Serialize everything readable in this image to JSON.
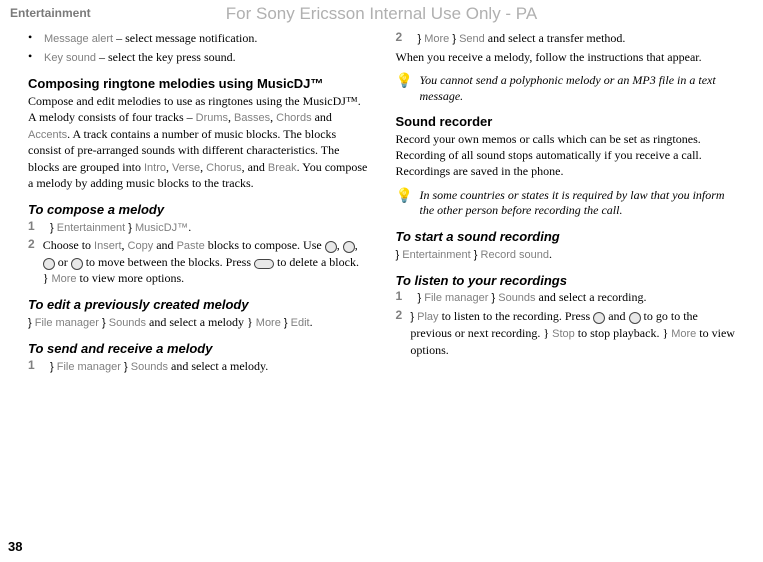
{
  "header": {
    "section": "Entertainment",
    "watermark": "For Sony Ericsson Internal Use Only - PA"
  },
  "page_number": "38",
  "left": {
    "bullets": [
      {
        "label": "Message alert",
        "sep": " – ",
        "rest": "select message notification."
      },
      {
        "label": "Key sound",
        "sep": " – ",
        "rest": "select the key press sound."
      }
    ],
    "h_compose": "Composing ringtone melodies using MusicDJ™",
    "compose_body1": "Compose and edit melodies to use as ringtones using the MusicDJ™. A melody consists of four tracks – ",
    "tracks": [
      "Drums",
      "Basses",
      "Chords",
      "Accents"
    ],
    "and": " and ",
    "comma": ", ",
    "compose_body2": ". A track contains a number of music blocks. The blocks consist of pre-arranged sounds with different characteristics. The blocks are grouped into ",
    "groups": [
      "Intro",
      "Verse",
      "Chorus",
      "Break"
    ],
    "compose_body3": ". You compose a melody by adding music blocks to the tracks.",
    "h_to_compose": "To compose a melody",
    "step1_pre": "} ",
    "step1_a": "Entertainment",
    "step1_b": "MusicDJ™",
    "step2_pre": "Choose to ",
    "ins": "Insert",
    "copy": "Copy",
    "paste": "Paste",
    "step2_mid": " blocks to compose. Use ",
    "step2_mid2": " or ",
    "step2_mid3": " to move between the blocks. Press ",
    "step2_mid4": " to delete a block. } ",
    "more": "More",
    "step2_end": " to view more options.",
    "h_edit": "To edit a previously created melody",
    "edit_pre": "} ",
    "file_manager": "File manager",
    "sounds": "Sounds",
    "edit_mid": " and select a melody } ",
    "edit_more": "More",
    "edit_arrow": " } ",
    "edit": "Edit",
    "h_send": "To send and receive a melody",
    "send1_pre": "} ",
    "send1_end": " and select a melody."
  },
  "right": {
    "send2_pre": "} ",
    "send2_more": "More",
    "send2_arrow": " } ",
    "send": "Send",
    "send2_end": " and select a transfer method.",
    "receive": "When you receive a melody, follow the instructions that appear.",
    "tip1": "You cannot send a polyphonic melody or an MP3 file in a text message.",
    "h_sound": "Sound recorder",
    "sound_body": "Record your own memos or calls which can be set as ringtones. Recording of all sound stops automatically if you receive a call. Recordings are saved in the phone.",
    "tip2": "In some countries or states it is required by law that you inform the other person before recording the call.",
    "h_start": "To start a sound recording",
    "start_pre": "} ",
    "start_a": "Entertainment",
    "start_b": "Record sound",
    "h_listen": "To listen to your recordings",
    "listen1_pre": "} ",
    "listen1_a": "File manager",
    "listen1_b": "Sounds",
    "listen1_end": " and select a recording.",
    "listen2_pre": "} ",
    "play": "Play",
    "listen2_mid": " to listen to the recording. Press ",
    "listen2_mid2": " and ",
    "listen2_mid3": " to go to the previous or next recording. } ",
    "stop": "Stop",
    "listen2_mid4": " to stop playback. } ",
    "listen2_more": "More",
    "listen2_end": " to view options."
  }
}
